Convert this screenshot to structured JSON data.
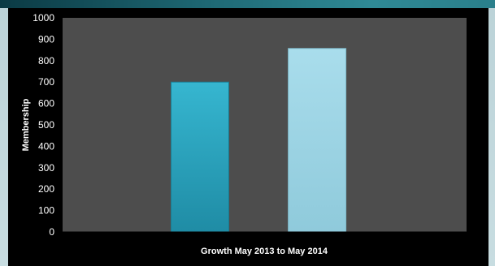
{
  "colors": {
    "plot_background": "#4d4d4d",
    "chart_background": "#000000",
    "bar_1": "#2aa6c1",
    "bar_2": "#9fd6e6",
    "frame": "#0f3d47"
  },
  "chart_data": {
    "type": "bar",
    "title": "",
    "xlabel": "Growth May 2013 to May 2014",
    "ylabel": "Membership",
    "categories": [
      "",
      ""
    ],
    "values": [
      700,
      857
    ],
    "ylim": [
      0,
      1000
    ],
    "yticks": [
      0,
      100,
      200,
      300,
      400,
      500,
      600,
      700,
      800,
      900,
      1000
    ],
    "grid": false,
    "legend": "none"
  }
}
